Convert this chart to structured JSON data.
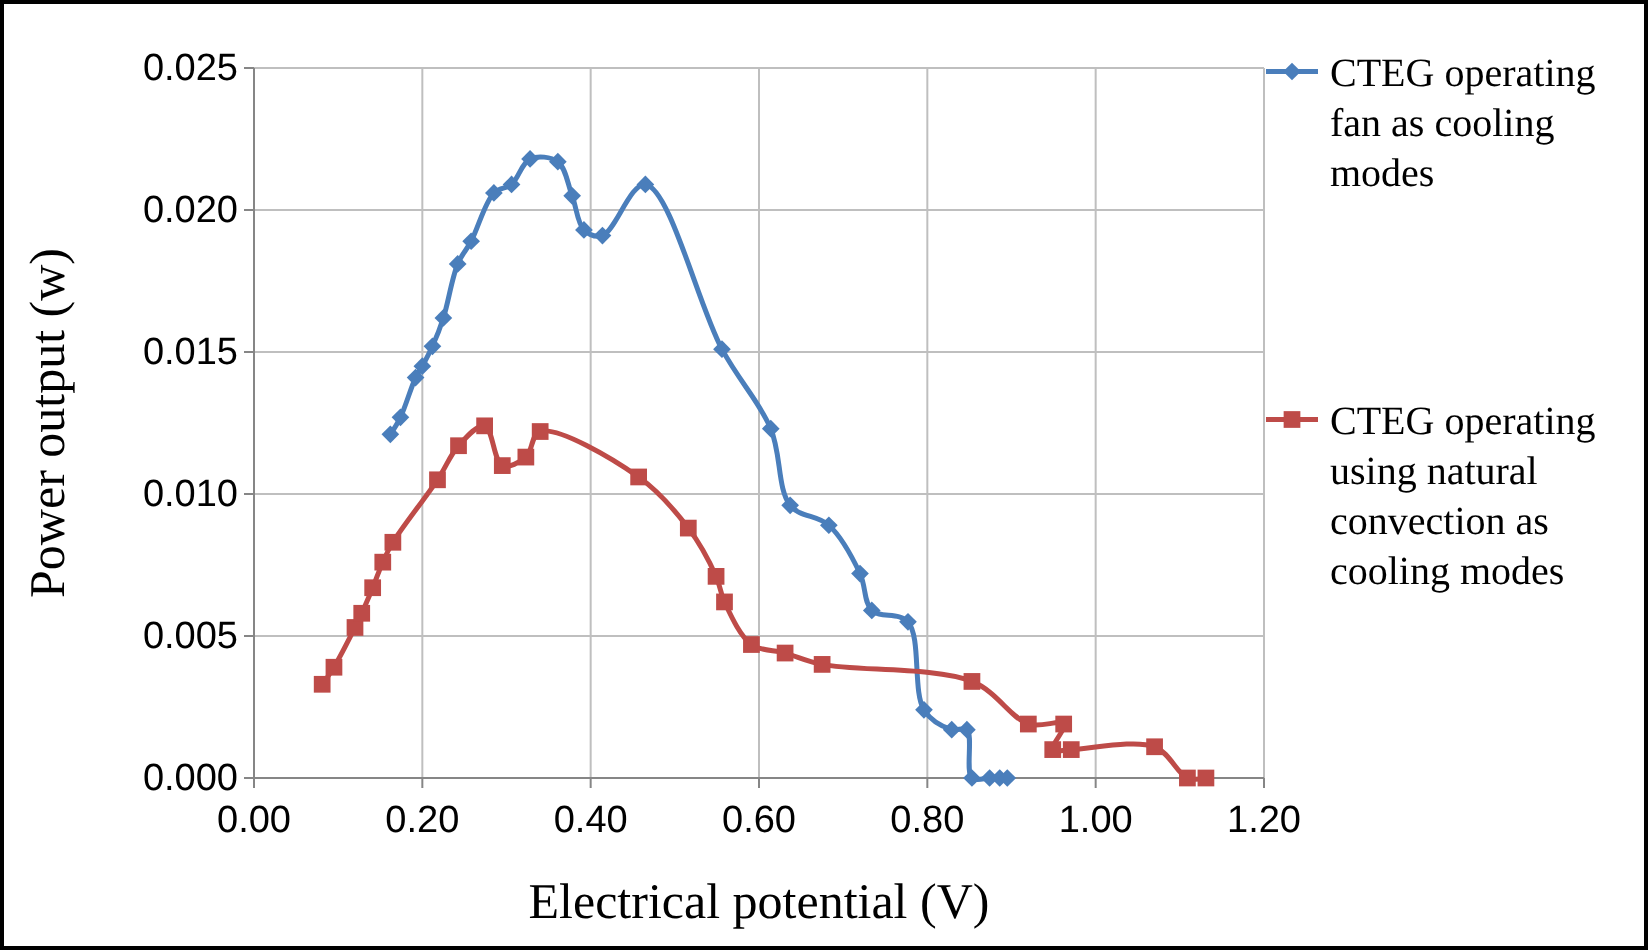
{
  "chart_data": {
    "type": "line",
    "xlabel": "Electrical potential (V)",
    "ylabel": "Power output (w)",
    "xlim": [
      0,
      1.2
    ],
    "ylim": [
      0,
      0.025
    ],
    "xticks": [
      {
        "value": 0,
        "label": "0.00"
      },
      {
        "value": 0.2,
        "label": "0.20"
      },
      {
        "value": 0.4,
        "label": "0.40"
      },
      {
        "value": 0.6,
        "label": "0.60"
      },
      {
        "value": 0.8,
        "label": "0.80"
      },
      {
        "value": 1.0,
        "label": "1.00"
      },
      {
        "value": 1.2,
        "label": "1.20"
      }
    ],
    "yticks": [
      {
        "value": 0,
        "label": "0.000"
      },
      {
        "value": 0.005,
        "label": "0.005"
      },
      {
        "value": 0.01,
        "label": "0.010"
      },
      {
        "value": 0.015,
        "label": "0.015"
      },
      {
        "value": 0.02,
        "label": "0.020"
      },
      {
        "value": 0.025,
        "label": "0.025"
      }
    ],
    "grid": true,
    "legend": "right",
    "line_style": "solid",
    "series": [
      {
        "name": "CTEG operating fan as cooling modes",
        "color": "#4a7ebb",
        "marker": "diamond",
        "x": [
          0.162,
          0.174,
          0.192,
          0.2,
          0.212,
          0.225,
          0.242,
          0.258,
          0.285,
          0.306,
          0.328,
          0.361,
          0.378,
          0.392,
          0.414,
          0.465,
          0.556,
          0.614,
          0.637,
          0.683,
          0.72,
          0.734,
          0.777,
          0.796,
          0.829,
          0.847,
          0.853,
          0.874,
          0.886,
          0.895
        ],
        "values": [
          0.0121,
          0.0127,
          0.0141,
          0.0145,
          0.0152,
          0.0162,
          0.0181,
          0.0189,
          0.0206,
          0.0209,
          0.0218,
          0.0217,
          0.0205,
          0.0193,
          0.0191,
          0.0209,
          0.0151,
          0.0123,
          0.0096,
          0.0089,
          0.0072,
          0.0059,
          0.0055,
          0.0024,
          0.0017,
          0.0017,
          0,
          0,
          0,
          0
        ]
      },
      {
        "name": "CTEG operating using natural convection as cooling modes",
        "color": "#be4b48",
        "marker": "square",
        "x": [
          0.081,
          0.095,
          0.12,
          0.128,
          0.141,
          0.153,
          0.165,
          0.218,
          0.243,
          0.274,
          0.295,
          0.323,
          0.34,
          0.457,
          0.516,
          0.549,
          0.559,
          0.591,
          0.631,
          0.675,
          0.853,
          0.92,
          0.962,
          0.949,
          0.971,
          1.07,
          1.109,
          1.131
        ],
        "values": [
          0.0033,
          0.0039,
          0.0053,
          0.0058,
          0.0067,
          0.0076,
          0.0083,
          0.0105,
          0.0117,
          0.0124,
          0.011,
          0.0113,
          0.0122,
          0.0106,
          0.0088,
          0.0071,
          0.0062,
          0.0047,
          0.0044,
          0.004,
          0.0034,
          0.0019,
          0.0019,
          0.001,
          0.001,
          0.0011,
          0,
          0
        ]
      }
    ]
  }
}
